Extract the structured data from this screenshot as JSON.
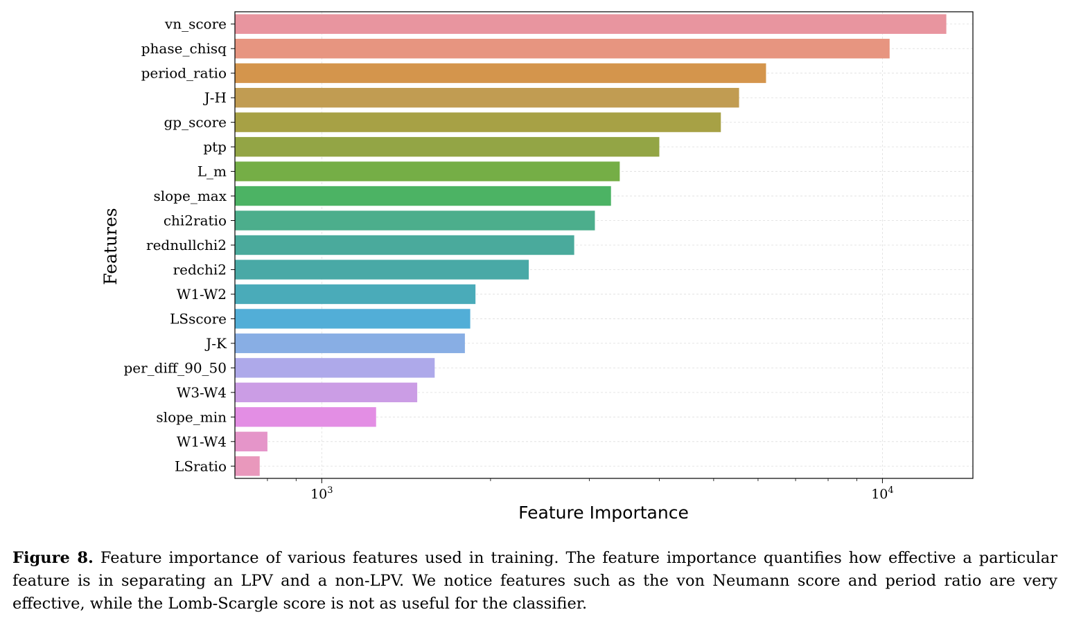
{
  "chart_data": {
    "type": "bar",
    "orientation": "horizontal",
    "xscale": "log",
    "xlim": [
      700,
      14500
    ],
    "xlabel": "Feature Importance",
    "ylabel": "Features",
    "xticks": [
      1000,
      10000
    ],
    "xtick_labels": [
      {
        "base": "10",
        "exp": "3"
      },
      {
        "base": "10",
        "exp": "4"
      }
    ],
    "grid": true,
    "categories": [
      "vn_score",
      "phase_chisq",
      "period_ratio",
      "J-H",
      "gp_score",
      "ptp",
      "L_m",
      "slope_max",
      "chi2ratio",
      "rednullchi2",
      "redchi2",
      "W1-W2",
      "LSscore",
      "J-K",
      "per_diff_90_50",
      "W3-W4",
      "slope_min",
      "W1-W4",
      "LSratio"
    ],
    "values": [
      13000,
      10300,
      6200,
      5550,
      5150,
      4000,
      3400,
      3280,
      3070,
      2820,
      2340,
      1880,
      1840,
      1800,
      1590,
      1480,
      1250,
      800,
      775
    ],
    "colors": [
      "#e8959f",
      "#e79580",
      "#d4954c",
      "#c19c52",
      "#a7a145",
      "#93a545",
      "#75ae46",
      "#4cb364",
      "#4cae8c",
      "#4aaa9c",
      "#49a9a6",
      "#4aabb9",
      "#52aed7",
      "#88aee4",
      "#aea9ea",
      "#cb9de5",
      "#e38ee4",
      "#e595c9",
      "#e998bc"
    ]
  },
  "caption": {
    "label": "Figure 8.",
    "text": " Feature importance of various features used in training. The feature importance quantifies how effective a particular feature is in separating an LPV and a non-LPV. We notice features such as the von Neumann score and period ratio are very effective, while the Lomb-Scargle score is not as useful for the classifier."
  }
}
